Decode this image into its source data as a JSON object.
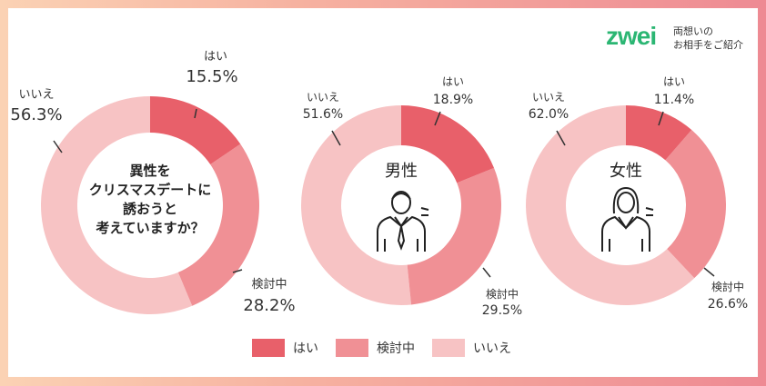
{
  "logo": {
    "word": "zwei",
    "tagline_1": "両想いの",
    "tagline_2": "お相手をご紹介"
  },
  "colors": {
    "yes": "#e8606a",
    "considering": "#f09095",
    "no": "#f7c3c4"
  },
  "legend": [
    {
      "label": "はい",
      "color": "#e8606a"
    },
    {
      "label": "検討中",
      "color": "#f09095"
    },
    {
      "label": "いいえ",
      "color": "#f7c3c4"
    }
  ],
  "chart_data": [
    {
      "type": "pie",
      "center_text": [
        "異性を",
        "クリスマスデートに",
        "誘おうと",
        "考えていますか？"
      ],
      "slices": [
        {
          "label": "はい",
          "value": 15.5,
          "display": "15.5%"
        },
        {
          "label": "検討中",
          "value": 28.2,
          "display": "28.2%"
        },
        {
          "label": "いいえ",
          "value": 56.3,
          "display": "56.3%"
        }
      ]
    },
    {
      "type": "pie",
      "center_text": [
        "男性"
      ],
      "icon": "man-icon",
      "slices": [
        {
          "label": "はい",
          "value": 18.9,
          "display": "18.9%"
        },
        {
          "label": "検討中",
          "value": 29.5,
          "display": "29.5%"
        },
        {
          "label": "いいえ",
          "value": 51.6,
          "display": "51.6%"
        }
      ]
    },
    {
      "type": "pie",
      "center_text": [
        "女性"
      ],
      "icon": "woman-icon",
      "slices": [
        {
          "label": "はい",
          "value": 11.4,
          "display": "11.4%"
        },
        {
          "label": "検討中",
          "value": 26.6,
          "display": "26.6%"
        },
        {
          "label": "いいえ",
          "value": 62.0,
          "display": "62.0%"
        }
      ]
    }
  ]
}
